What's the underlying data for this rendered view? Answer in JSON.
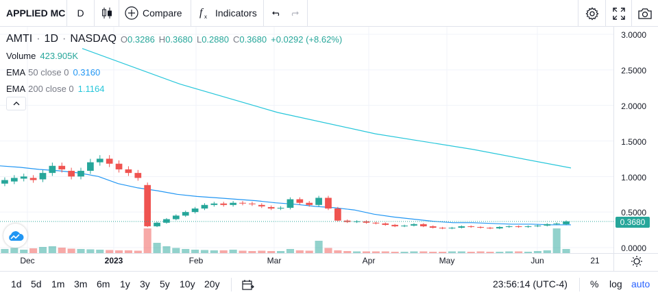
{
  "toolbar": {
    "symbol": "APPLIED MC",
    "interval": "D",
    "compare_label": "Compare",
    "indicators_label": "Indicators"
  },
  "legend": {
    "ticker": "AMTI",
    "interval": "1D",
    "exchange": "NASDAQ",
    "open_label": "O",
    "open": "0.3286",
    "high_label": "H",
    "high": "0.3680",
    "low_label": "L",
    "low": "0.2880",
    "close_label": "C",
    "close": "0.3680",
    "change": "+0.0292 (+8.62%)",
    "volume_name": "Volume",
    "volume_value": "423.905K",
    "ema50_name": "EMA",
    "ema50_args": "50 close 0",
    "ema50_value": "0.3160",
    "ema200_name": "EMA",
    "ema200_args": "200 close 0",
    "ema200_value": "1.1164"
  },
  "price_scale": {
    "labels": [
      "3.0000",
      "2.5000",
      "2.0000",
      "1.5000",
      "1.0000",
      "0.5000",
      "0.0000"
    ],
    "last_price": "0.3680"
  },
  "time_axis": {
    "labels": [
      {
        "text": "Dec",
        "bold": false
      },
      {
        "text": "2023",
        "bold": true
      },
      {
        "text": "Feb",
        "bold": false
      },
      {
        "text": "Mar",
        "bold": false
      },
      {
        "text": "Apr",
        "bold": false
      },
      {
        "text": "May",
        "bold": false
      },
      {
        "text": "Jun",
        "bold": false
      },
      {
        "text": "21",
        "bold": false
      }
    ]
  },
  "bottom_bar": {
    "ranges": [
      "1d",
      "5d",
      "1m",
      "3m",
      "6m",
      "1y",
      "3y",
      "5y",
      "10y",
      "20y"
    ],
    "clock": "23:56:14 (UTC-4)",
    "percent_label": "%",
    "log_label": "log",
    "auto_label": "auto"
  },
  "colors": {
    "up": "#26a69a",
    "down": "#ef5350",
    "ema50": "#2196f3",
    "ema200": "#26c6da",
    "accent": "#2962ff"
  },
  "chart_data": {
    "type": "candlestick",
    "ylim": [
      0,
      3.0
    ],
    "ema50": [
      1.15,
      1.13,
      1.1,
      1.08,
      1.05,
      1.0,
      0.9,
      0.84,
      0.8,
      0.75,
      0.72,
      0.7,
      0.68,
      0.66,
      0.63,
      0.61,
      0.58,
      0.56,
      0.53,
      0.47,
      0.43,
      0.4,
      0.37,
      0.35,
      0.35,
      0.34,
      0.33,
      0.33,
      0.32,
      0.32
    ],
    "ema200": [
      2.8,
      2.3,
      1.9,
      1.6,
      1.38,
      1.12
    ],
    "candles": [
      [
        0.9,
        0.95
      ],
      [
        0.93,
        0.98
      ],
      [
        0.97,
        1.0
      ],
      [
        0.98,
        0.95
      ],
      [
        0.96,
        1.05
      ],
      [
        1.05,
        1.15
      ],
      [
        1.15,
        1.1
      ],
      [
        1.08,
        1.0
      ],
      [
        1.0,
        1.08
      ],
      [
        1.08,
        1.2
      ],
      [
        1.2,
        1.25
      ],
      [
        1.25,
        1.18
      ],
      [
        1.18,
        1.1
      ],
      [
        1.1,
        1.05
      ],
      [
        1.05,
        0.98
      ],
      [
        0.88,
        0.3
      ],
      [
        0.3,
        0.35
      ],
      [
        0.35,
        0.4
      ],
      [
        0.4,
        0.45
      ],
      [
        0.45,
        0.5
      ],
      [
        0.5,
        0.55
      ],
      [
        0.55,
        0.6
      ],
      [
        0.6,
        0.62
      ],
      [
        0.62,
        0.6
      ],
      [
        0.6,
        0.63
      ],
      [
        0.63,
        0.62
      ],
      [
        0.62,
        0.61
      ],
      [
        0.6,
        0.58
      ],
      [
        0.57,
        0.55
      ],
      [
        0.55,
        0.56
      ],
      [
        0.56,
        0.68
      ],
      [
        0.68,
        0.63
      ],
      [
        0.63,
        0.6
      ],
      [
        0.6,
        0.7
      ],
      [
        0.7,
        0.55
      ],
      [
        0.55,
        0.38
      ],
      [
        0.38,
        0.36
      ],
      [
        0.36,
        0.37
      ],
      [
        0.37,
        0.35
      ],
      [
        0.35,
        0.34
      ],
      [
        0.34,
        0.32
      ],
      [
        0.32,
        0.3
      ],
      [
        0.3,
        0.31
      ],
      [
        0.31,
        0.33
      ],
      [
        0.33,
        0.3
      ],
      [
        0.3,
        0.28
      ],
      [
        0.28,
        0.27
      ],
      [
        0.27,
        0.28
      ],
      [
        0.28,
        0.3
      ],
      [
        0.3,
        0.29
      ],
      [
        0.29,
        0.28
      ],
      [
        0.28,
        0.27
      ],
      [
        0.27,
        0.29
      ],
      [
        0.29,
        0.3
      ],
      [
        0.3,
        0.29
      ],
      [
        0.29,
        0.3
      ],
      [
        0.3,
        0.31
      ],
      [
        0.31,
        0.33
      ],
      [
        0.33,
        0.34
      ],
      [
        0.3286,
        0.368
      ]
    ],
    "volumes": [
      0.12,
      0.15,
      0.1,
      0.14,
      0.18,
      0.2,
      0.16,
      0.13,
      0.12,
      0.11,
      0.1,
      0.09,
      0.08,
      0.08,
      0.07,
      0.72,
      0.3,
      0.2,
      0.15,
      0.12,
      0.1,
      0.09,
      0.08,
      0.08,
      0.1,
      0.07,
      0.06,
      0.07,
      0.06,
      0.06,
      0.12,
      0.08,
      0.07,
      0.36,
      0.15,
      0.08,
      0.06,
      0.05,
      0.05,
      0.05,
      0.05,
      0.04,
      0.04,
      0.05,
      0.05,
      0.04,
      0.04,
      0.05,
      0.05,
      0.04,
      0.05,
      0.04,
      0.04,
      0.05,
      0.05,
      0.04,
      0.06,
      0.08,
      0.72,
      0.12
    ]
  }
}
